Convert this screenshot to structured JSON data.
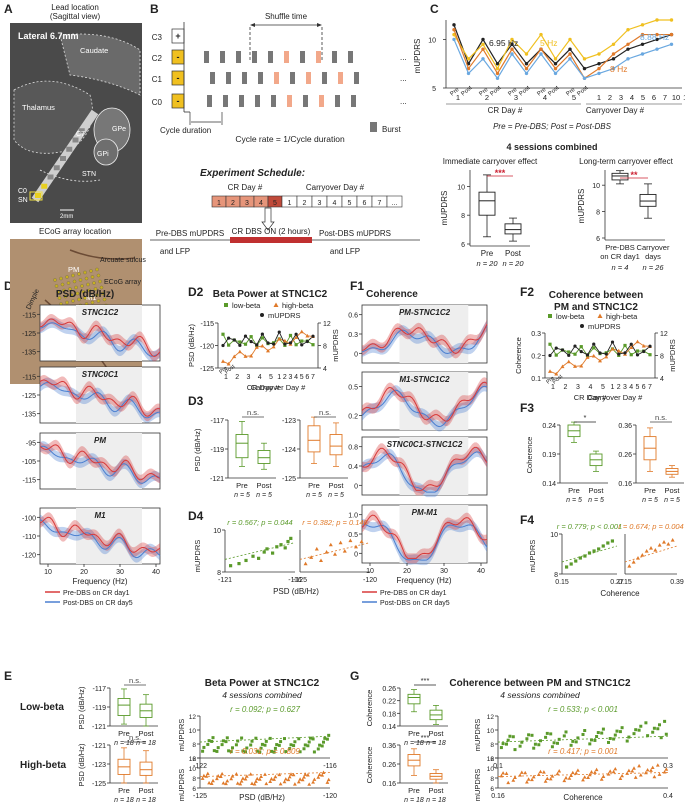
{
  "colors": {
    "green": "#5a9a2a",
    "orange": "#e07a2a",
    "red": "#d83a3a",
    "blue": "#4a7fd0",
    "gray": "#888888",
    "salmon": "#f2a88a",
    "yellow": "#f0c020",
    "skyblue": "#6aa8e0",
    "darkred": "#cc2233"
  },
  "panel_labels": {
    "A": "A",
    "B": "B",
    "C": "C",
    "D1": "D1",
    "D2": "D2",
    "D3": "D3",
    "D4": "D4",
    "E": "E",
    "F1": "F1",
    "F2": "F2",
    "F3": "F3",
    "F4": "F4",
    "G": "G"
  },
  "A": {
    "title1": "Lead location",
    "title2": "(Sagittal view)",
    "lateral": "Lateral 6.7mm",
    "labels": {
      "caudate": "Caudate",
      "thalamus": "Thalamus",
      "gpe": "GPe",
      "gpi": "GPi",
      "stn": "STN",
      "sn": "SN",
      "c0": "C0",
      "c7": "C7",
      "scale": "2mm"
    },
    "ecog_title": "ECoG array location",
    "ecog_labels": {
      "arcuate": "Arcuate sulcus",
      "pm": "PM",
      "ecog": "ECoG array",
      "m1": "M1",
      "dimple": "Dimple",
      "central": "Central sulcus"
    }
  },
  "B": {
    "shuffle": "Shuffle time",
    "contacts": [
      "C3",
      "C2",
      "C1",
      "C0"
    ],
    "signs": [
      "+",
      "-",
      "-",
      "-"
    ],
    "cycle": "Cycle duration",
    "cycle_rate": "Cycle rate = 1/Cycle duration",
    "burst": "Burst",
    "dots": "...",
    "schedule_title": "Experiment Schedule:",
    "crday": "CR Day #",
    "carryover": "Carryover Day #",
    "cr_days": [
      "1",
      "2",
      "3",
      "4",
      "5"
    ],
    "carry_days": [
      "1",
      "2",
      "3",
      "4",
      "5",
      "6",
      "7",
      "..."
    ],
    "pre": "Pre-DBS mUPDRS",
    "pre2": "and LFP",
    "on": "CR DBS ON (2 hours)",
    "post": "Post-DBS mUPDRS",
    "post2": "and LFP"
  },
  "C": {
    "ylabel": "mUPDRS",
    "ticks": [
      "5",
      "10"
    ],
    "hz": [
      "6.95 Hz",
      "5 Hz",
      "8 Hz",
      "8.88 Hz"
    ],
    "cr_days": [
      "1",
      "2",
      "3",
      "4",
      "5"
    ],
    "carry_days": [
      "1",
      "2",
      "3",
      "4",
      "5",
      "6",
      "7",
      "10",
      "11",
      "12"
    ],
    "prepost": [
      "Pre",
      "Post"
    ],
    "crlab": "CR Day #",
    "carrylab": "Carryover Day #",
    "legend": "Pre = Pre-DBS; Post = Post-DBS",
    "combined": "4 sessions combined",
    "imm_title": "Immediate carryover effect",
    "long_title": "Long-term carryover effect",
    "imm_stars": "***",
    "long_stars": "**",
    "imm_ticks": [
      "6",
      "8",
      "10"
    ],
    "long_ticks": [
      "6",
      "8",
      "10"
    ],
    "imm_x": [
      "Pre",
      "Post"
    ],
    "imm_n": [
      "n = 20",
      "n = 20"
    ],
    "long_x1a": "Pre-DBS",
    "long_x1b": "on CR day1",
    "long_x2a": "Carryover",
    "long_x2b": "days",
    "long_n": [
      "n = 4",
      "n = 26"
    ]
  },
  "D1": {
    "title": "PSD (dB/Hz)",
    "subs": [
      "STNC1C2",
      "STNC0C1",
      "PM",
      "M1"
    ],
    "ticks": [
      [
        "-115",
        "-125",
        "-135"
      ],
      [
        "-115",
        "-125",
        "-135"
      ],
      [
        "-95",
        "-105",
        "-115"
      ],
      [
        "-100",
        "-110",
        "-120"
      ]
    ],
    "xticks": [
      "10",
      "20",
      "30",
      "40"
    ],
    "xlabel": "Frequency (Hz)",
    "leg": [
      "Pre-DBS on CR day1",
      "Post-DBS on CR day5"
    ]
  },
  "D2": {
    "title": "Beta Power at STNC1C2",
    "legend": [
      "low-beta",
      "high-beta",
      "mUPDRS"
    ],
    "ylabel": "PSD (dB/Hz)",
    "y2label": "mUPDRS",
    "ticks": [
      "-115",
      "-120",
      "-125"
    ],
    "ticks2": [
      "12",
      "8",
      "4"
    ],
    "cr": [
      "1",
      "2",
      "3",
      "4",
      "5"
    ],
    "carry": [
      "1",
      "2",
      "3",
      "4",
      "5",
      "6",
      "7"
    ],
    "crlab": "CR Day #",
    "carrylab": "Carryover Day #",
    "pre": "Pre",
    "post": "Post"
  },
  "D3": {
    "ns": "n.s.",
    "ylabel": "PSD (dB/Hz)",
    "ticks_l": [
      "-117",
      "-119",
      "-121"
    ],
    "ticks_r": [
      "-123",
      "-124",
      "-125"
    ],
    "x": [
      "Pre",
      "Post"
    ],
    "n": [
      "n = 5",
      "n = 5"
    ]
  },
  "D4": {
    "r_l": "r = 0.567; p = 0.044",
    "r_r": "r = 0.382; p = 0.146",
    "ylabel": "mUPDRS",
    "ticks": [
      "10",
      "8"
    ],
    "xt_l": [
      "-121",
      "-116"
    ],
    "xt_r": [
      "-125",
      "-120"
    ],
    "xlabel": "PSD (dB/Hz)"
  },
  "F1": {
    "title": "Coherence",
    "subs": [
      "PM-STNC1C2",
      "M1-STNC1C2",
      "STNC0C1-STNC1C2",
      "PM-M1"
    ],
    "ticks": [
      [
        "0.6",
        "0.3",
        "0"
      ],
      [
        "0.5",
        "0.2"
      ],
      [
        "0.8",
        "0.4",
        "0"
      ],
      [
        "1.0",
        "0.5",
        "0"
      ]
    ],
    "xticks": [
      "10",
      "20",
      "30",
      "40"
    ],
    "xlabel": "Frequency (Hz)",
    "leg": [
      "Pre-DBS on CR day1",
      "Post-DBS on CR day5"
    ]
  },
  "F2": {
    "title1": "Coherence between",
    "title2": "PM and STNC1C2",
    "legend": [
      "low-beta",
      "high-beta",
      "mUPDRS"
    ],
    "ylabel": "Coherence",
    "y2label": "mUPDRS",
    "ticks": [
      "0.3",
      "0.2",
      "0.1"
    ],
    "ticks2": [
      "12",
      "8",
      "4"
    ],
    "cr": [
      "1",
      "2",
      "3",
      "4",
      "5"
    ],
    "carry": [
      "1",
      "2",
      "3",
      "4",
      "5",
      "6",
      "7"
    ],
    "crlab": "CR Day #",
    "carrylab": "Carryover Day #",
    "pre": "Pre",
    "post": "Post"
  },
  "F3": {
    "star": "*",
    "ns": "n.s.",
    "ylabel": "Coherence",
    "ticks_l": [
      "0.24",
      "0.19",
      "0.14"
    ],
    "ticks_r": [
      "0.36",
      "0.26",
      "0.16"
    ],
    "x": [
      "Pre",
      "Post"
    ],
    "n": [
      "n = 5",
      "n = 5"
    ]
  },
  "F4": {
    "r_l": "r = 0.779; p < 0.001",
    "r_r": "r = 0.674; p = 0.004",
    "ylabel": "mUPDRS",
    "ticks": [
      "10",
      "8"
    ],
    "xt_l": [
      "0.15",
      "0.27"
    ],
    "xt_r": [
      "0.15",
      "0.39"
    ],
    "xlabel": "Coherence"
  },
  "E": {
    "title": "Beta Power at STNC1C2",
    "subtitle": "4 sessions combined",
    "row1": "Low-beta",
    "row2": "High-beta",
    "ns": "n.s.",
    "ylabel": "PSD (dB/Hz)",
    "ticks1": [
      "-117",
      "-119",
      "-121"
    ],
    "ticks2": [
      "-121",
      "-123",
      "-125"
    ],
    "x": [
      "Pre",
      "Post"
    ],
    "n": [
      "n = 18",
      "n = 18"
    ],
    "r1": "r = 0.092; p = 0.627",
    "r2": "r = 0.031; p = 0.809",
    "ylabel2": "mUPDRS",
    "yt": [
      "12",
      "10",
      "8",
      "6"
    ],
    "xt1": [
      "-122",
      "-116"
    ],
    "xt2": [
      "-125",
      "-120"
    ],
    "xlabel": "PSD (dB/Hz)"
  },
  "G": {
    "title": "Coherence between PM and STNC1C2",
    "subtitle": "4 sessions combined",
    "stars": "***",
    "ylabel": "Coherence",
    "ticks1": [
      "0.26",
      "0.22",
      "0.18",
      "0.14"
    ],
    "ticks2": [
      "0.36",
      "0.26",
      "0.16"
    ],
    "x": [
      "Pre",
      "Post"
    ],
    "n": [
      "n = 18",
      "n = 18"
    ],
    "r1": "r = 0.533; p < 0.001",
    "r2": "r = 0.417; p = 0.001",
    "ylabel2": "mUPDRS",
    "yt": [
      "12",
      "10",
      "8",
      "6"
    ],
    "xt1": [
      "0.1",
      "0.3"
    ],
    "xt2": [
      "0.16",
      "0.4"
    ],
    "xlabel": "Coherence"
  },
  "chart_data": [
    {
      "type": "line",
      "title": "mUPDRS across CR and carryover days",
      "series": [
        {
          "name": "6.95 Hz",
          "values": [
            11.5,
            7.5,
            10,
            7.5,
            9.5,
            7.5,
            9,
            7.5,
            9,
            7,
            7.5,
            8,
            9,
            9.5,
            10,
            10.5
          ]
        },
        {
          "name": "5 Hz",
          "values": [
            10.5,
            8,
            9.5,
            7,
            10,
            8.5,
            10.5,
            8,
            10,
            8,
            8.5,
            9.5,
            11,
            11.5,
            12,
            12
          ]
        },
        {
          "name": "8 Hz",
          "values": [
            11,
            7,
            9,
            6.5,
            9,
            7,
            9,
            7,
            8.5,
            6,
            7,
            8.5,
            9.5,
            10.5,
            10.5,
            10.5
          ]
        },
        {
          "name": "8.88 Hz",
          "values": [
            10,
            6.5,
            8,
            6,
            8.5,
            6.5,
            8.5,
            6.5,
            8,
            6,
            6.5,
            7,
            8,
            8.5,
            9,
            9.5
          ]
        }
      ]
    },
    {
      "type": "box",
      "title": "Immediate carryover effect",
      "categories": [
        "Pre",
        "Post"
      ],
      "n": [
        20,
        20
      ],
      "ylabel": "mUPDRS",
      "boxes": [
        {
          "min": 6.5,
          "q1": 8,
          "median": 9,
          "q3": 9.6,
          "max": 10.8
        },
        {
          "min": 6.2,
          "q1": 6.7,
          "median": 7,
          "q3": 7.4,
          "max": 7.8
        }
      ]
    },
    {
      "type": "box",
      "title": "Long-term carryover effect",
      "categories": [
        "Pre-DBS on CR day1",
        "Carryover days"
      ],
      "n": [
        4,
        26
      ],
      "ylabel": "mUPDRS",
      "boxes": [
        {
          "min": 10.1,
          "q1": 10.4,
          "median": 10.7,
          "q3": 10.9,
          "max": 11.1
        },
        {
          "min": 7.5,
          "q1": 8.4,
          "median": 8.8,
          "q3": 9.3,
          "max": 10.1
        }
      ]
    },
    {
      "type": "scatter",
      "title": "D4 low-beta",
      "r": 0.567,
      "p": 0.044,
      "x": [
        -120.6,
        -120,
        -119.5,
        -119,
        -118.6,
        -118.2,
        -118,
        -117.6,
        -117.3,
        -117,
        -116.7,
        -116.5,
        -116.3
      ],
      "y": [
        7.6,
        7.8,
        8.1,
        8.5,
        8.3,
        8.9,
        9.2,
        8.8,
        9.4,
        9.6,
        9.3,
        9.9,
        10.2
      ]
    },
    {
      "type": "scatter",
      "title": "D4 high-beta",
      "r": 0.382,
      "p": 0.146,
      "x": [
        -124.6,
        -124.2,
        -123.8,
        -123.5,
        -123.1,
        -122.8,
        -122.5,
        -122.1,
        -121.8,
        -121.4,
        -121,
        -120.6
      ],
      "y": [
        7.8,
        8.4,
        9.2,
        8.1,
        8.9,
        9.6,
        8.7,
        9.8,
        9,
        10,
        9.4,
        9.9
      ]
    },
    {
      "type": "scatter",
      "title": "F4 low-beta",
      "r": 0.779,
      "p": 0.001,
      "x": [
        0.16,
        0.17,
        0.18,
        0.19,
        0.2,
        0.21,
        0.22,
        0.23,
        0.24,
        0.25,
        0.26
      ],
      "y": [
        7.7,
        8,
        8.3,
        8.6,
        8.8,
        9.1,
        9.3,
        9.5,
        9.8,
        10.1,
        10.3
      ]
    },
    {
      "type": "scatter",
      "title": "F4 high-beta",
      "r": 0.674,
      "p": 0.004,
      "x": [
        0.17,
        0.19,
        0.21,
        0.23,
        0.25,
        0.27,
        0.29,
        0.31,
        0.33,
        0.35,
        0.37
      ],
      "y": [
        7.8,
        8.2,
        8.6,
        8.9,
        9.3,
        9.6,
        9.4,
        9.9,
        10.2,
        10,
        10.4
      ]
    },
    {
      "type": "box",
      "title": "D3 low-beta",
      "n": [
        5,
        5
      ],
      "boxes": [
        {
          "min": -120.2,
          "q1": -119.6,
          "median": -118.6,
          "q3": -118,
          "max": -117.1
        },
        {
          "min": -120.4,
          "q1": -120,
          "median": -119.6,
          "q3": -119.1,
          "max": -118.6
        }
      ]
    },
    {
      "type": "box",
      "title": "D3 high-beta",
      "n": [
        5,
        5
      ],
      "boxes": [
        {
          "min": -124.5,
          "q1": -124.1,
          "median": -123.7,
          "q3": -123.2,
          "max": -122.9
        },
        {
          "min": -124.6,
          "q1": -124.2,
          "median": -123.9,
          "q3": -123.5,
          "max": -123.1
        }
      ]
    },
    {
      "type": "box",
      "title": "F3 low-beta",
      "n": [
        5,
        5
      ],
      "boxes": [
        {
          "min": 0.21,
          "q1": 0.22,
          "median": 0.23,
          "q3": 0.24,
          "max": 0.245
        },
        {
          "min": 0.16,
          "q1": 0.17,
          "median": 0.18,
          "q3": 0.19,
          "max": 0.195
        }
      ]
    },
    {
      "type": "box",
      "title": "F3 high-beta",
      "n": [
        5,
        5
      ],
      "boxes": [
        {
          "min": 0.2,
          "q1": 0.24,
          "median": 0.28,
          "q3": 0.32,
          "max": 0.35
        },
        {
          "min": 0.18,
          "q1": 0.19,
          "median": 0.2,
          "q3": 0.21,
          "max": 0.22
        }
      ]
    },
    {
      "type": "box",
      "title": "E low-beta",
      "n": [
        18,
        18
      ],
      "boxes": [
        {
          "min": -120.8,
          "q1": -119.9,
          "median": -118.8,
          "q3": -118.1,
          "max": -117.1
        },
        {
          "min": -121,
          "q1": -120.1,
          "median": -119.4,
          "q3": -118.7,
          "max": -117.7
        }
      ]
    },
    {
      "type": "box",
      "title": "E high-beta",
      "n": [
        18,
        18
      ],
      "boxes": [
        {
          "min": -125,
          "q1": -124.1,
          "median": -123.3,
          "q3": -122.5,
          "max": -121.3
        },
        {
          "min": -125,
          "q1": -124.2,
          "median": -123.6,
          "q3": -122.8,
          "max": -121.6
        }
      ]
    },
    {
      "type": "box",
      "title": "G low-beta",
      "n": [
        18,
        18
      ],
      "boxes": [
        {
          "min": 0.185,
          "q1": 0.21,
          "median": 0.23,
          "q3": 0.24,
          "max": 0.255
        },
        {
          "min": 0.145,
          "q1": 0.16,
          "median": 0.175,
          "q3": 0.19,
          "max": 0.205
        }
      ]
    },
    {
      "type": "box",
      "title": "G high-beta",
      "n": [
        18,
        18
      ],
      "boxes": [
        {
          "min": 0.2,
          "q1": 0.25,
          "median": 0.28,
          "q3": 0.31,
          "max": 0.34
        },
        {
          "min": 0.16,
          "q1": 0.18,
          "median": 0.195,
          "q3": 0.21,
          "max": 0.23
        }
      ]
    }
  ]
}
